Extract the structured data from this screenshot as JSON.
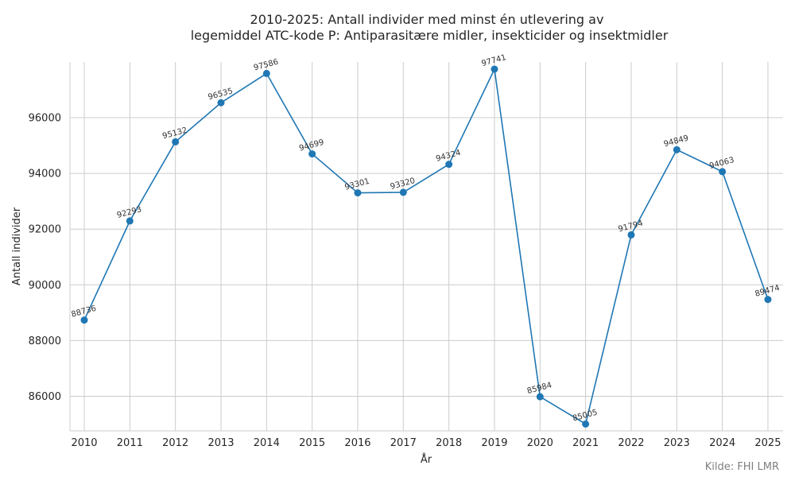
{
  "chart_data": {
    "type": "line",
    "title_line1": "2010-2025: Antall individer med minst én utlevering av",
    "title_line2": "legemiddel ATC-kode P: Antiparasitære midler, insekticider og insektmidler",
    "xlabel": "År",
    "ylabel": "Antall individer",
    "source": "Kilde: FHI LMR",
    "x": [
      2010,
      2011,
      2012,
      2013,
      2014,
      2015,
      2016,
      2017,
      2018,
      2019,
      2020,
      2021,
      2022,
      2023,
      2024,
      2025
    ],
    "series": [
      {
        "values": [
          88736,
          92293,
          95132,
          96535,
          97586,
          94699,
          93301,
          93320,
          94324,
          97741,
          85984,
          85005,
          91794,
          94849,
          94063,
          89474
        ],
        "color": "#1f77b4"
      }
    ],
    "y_ticks": [
      86000,
      88000,
      90000,
      92000,
      94000,
      96000
    ],
    "ylim": [
      84750,
      98000
    ],
    "grid": true,
    "legend": "none"
  }
}
